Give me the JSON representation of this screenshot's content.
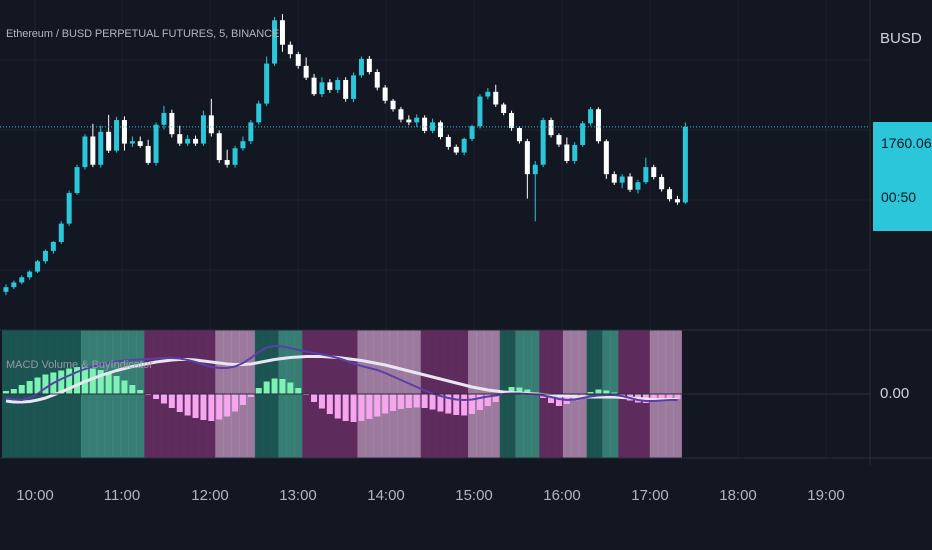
{
  "symbol_title": "Ethereum / BUSD PERPETUAL FUTURES, 5, BINANCE",
  "currency": "BUSD",
  "last_price": "1760.06",
  "countdown": "00:50",
  "indicator_title": "MACD Volume & BuyIndicator",
  "zero_label": "0.00",
  "colors": {
    "background": "#131722",
    "candle_up": "#2bc6d9",
    "candle_down": "#ffffff",
    "price_line": "#2bc6d9",
    "macd_line": "#5b3fa8",
    "signal_line": "#e8e6f0",
    "hist_pos": "#7ef2b4",
    "hist_neg": "#f6a6ee"
  },
  "chart_data": [
    {
      "type": "candlestick",
      "title": "Ethereum / BUSD PERPETUAL FUTURES, 5, BINANCE",
      "x_tick_labels": [
        "10:00",
        "11:00",
        "12:00",
        "13:00",
        "14:00",
        "15:00",
        "16:00",
        "17:00",
        "18:00",
        "19:00"
      ],
      "y_axis_unit": "BUSD",
      "last_price": 1760.06,
      "candles_ohlc": [
        [
          1725.0,
          1726.6,
          1724.3,
          1726.0
        ],
        [
          1726.0,
          1727.4,
          1725.6,
          1727.0
        ],
        [
          1727.0,
          1728.5,
          1726.6,
          1728.1
        ],
        [
          1728.1,
          1729.6,
          1727.6,
          1729.3
        ],
        [
          1729.3,
          1731.8,
          1729.0,
          1731.5
        ],
        [
          1731.5,
          1734.0,
          1731.0,
          1733.7
        ],
        [
          1733.7,
          1735.8,
          1733.1,
          1735.6
        ],
        [
          1735.6,
          1740.0,
          1735.2,
          1739.5
        ],
        [
          1739.5,
          1746.5,
          1739.0,
          1746.0
        ],
        [
          1746.0,
          1752.0,
          1745.6,
          1751.5
        ],
        [
          1751.5,
          1758.5,
          1751.0,
          1758.0
        ],
        [
          1758.0,
          1760.7,
          1751.5,
          1752.0
        ],
        [
          1752.0,
          1760.3,
          1751.4,
          1759.0
        ],
        [
          1759.0,
          1762.6,
          1754.5,
          1755.0
        ],
        [
          1755.0,
          1762.2,
          1754.6,
          1761.5
        ],
        [
          1761.5,
          1762.3,
          1755.0,
          1756.5
        ],
        [
          1756.5,
          1758.0,
          1755.8,
          1757.0
        ],
        [
          1757.0,
          1758.0,
          1755.6,
          1756.0
        ],
        [
          1756.0,
          1757.3,
          1752.0,
          1752.4
        ],
        [
          1752.4,
          1761.0,
          1751.8,
          1760.5
        ],
        [
          1760.5,
          1764.5,
          1759.5,
          1763.0
        ],
        [
          1763.0,
          1763.7,
          1757.8,
          1758.5
        ],
        [
          1758.5,
          1760.3,
          1756.0,
          1756.5
        ],
        [
          1756.5,
          1758.3,
          1756.0,
          1757.5
        ],
        [
          1757.5,
          1758.2,
          1756.0,
          1756.5
        ],
        [
          1756.5,
          1763.5,
          1756.0,
          1762.5
        ],
        [
          1762.5,
          1766.0,
          1758.0,
          1758.7
        ],
        [
          1758.7,
          1759.3,
          1752.4,
          1753.0
        ],
        [
          1753.0,
          1755.2,
          1751.4,
          1752.0
        ],
        [
          1752.0,
          1756.0,
          1751.4,
          1755.5
        ],
        [
          1755.5,
          1758.0,
          1755.0,
          1757.0
        ],
        [
          1757.0,
          1761.5,
          1756.4,
          1761.0
        ],
        [
          1761.0,
          1765.6,
          1760.5,
          1765.0
        ],
        [
          1765.0,
          1775.0,
          1764.5,
          1773.5
        ],
        [
          1773.5,
          1783.4,
          1773.0,
          1782.7
        ],
        [
          1782.7,
          1784.0,
          1776.0,
          1777.5
        ],
        [
          1777.5,
          1778.2,
          1774.6,
          1775.5
        ],
        [
          1775.5,
          1776.0,
          1772.4,
          1773.0
        ],
        [
          1773.0,
          1774.8,
          1770.0,
          1770.5
        ],
        [
          1770.5,
          1771.3,
          1766.6,
          1767.0
        ],
        [
          1767.0,
          1770.6,
          1766.4,
          1769.5
        ],
        [
          1769.5,
          1770.2,
          1767.3,
          1767.9
        ],
        [
          1767.9,
          1770.6,
          1767.2,
          1770.0
        ],
        [
          1770.0,
          1770.6,
          1765.4,
          1766.0
        ],
        [
          1766.0,
          1771.6,
          1765.3,
          1771.0
        ],
        [
          1771.0,
          1775.0,
          1770.5,
          1774.5
        ],
        [
          1774.5,
          1775.1,
          1771.2,
          1771.7
        ],
        [
          1771.7,
          1772.3,
          1767.8,
          1768.4
        ],
        [
          1768.4,
          1768.9,
          1765.0,
          1765.6
        ],
        [
          1765.6,
          1766.0,
          1763.3,
          1763.8
        ],
        [
          1763.8,
          1764.3,
          1761.0,
          1761.6
        ],
        [
          1761.6,
          1762.5,
          1760.4,
          1761.0
        ],
        [
          1761.0,
          1762.7,
          1760.0,
          1762.0
        ],
        [
          1762.0,
          1762.5,
          1758.7,
          1759.2
        ],
        [
          1759.2,
          1761.8,
          1758.7,
          1761.0
        ],
        [
          1761.0,
          1761.4,
          1757.4,
          1757.9
        ],
        [
          1757.9,
          1758.4,
          1755.2,
          1755.8
        ],
        [
          1755.8,
          1756.3,
          1754.1,
          1754.6
        ],
        [
          1754.6,
          1757.8,
          1754.0,
          1757.5
        ],
        [
          1757.5,
          1760.5,
          1757.0,
          1760.2
        ],
        [
          1760.2,
          1767.0,
          1759.7,
          1766.5
        ],
        [
          1766.5,
          1768.3,
          1765.9,
          1767.5
        ],
        [
          1767.5,
          1769.0,
          1764.3,
          1764.8
        ],
        [
          1764.8,
          1765.2,
          1762.5,
          1763.0
        ],
        [
          1763.0,
          1763.5,
          1759.2,
          1759.8
        ],
        [
          1759.8,
          1760.2,
          1756.5,
          1757.0
        ],
        [
          1757.0,
          1757.5,
          1744.8,
          1750.0
        ],
        [
          1750.0,
          1752.8,
          1740.0,
          1752.0
        ],
        [
          1752.0,
          1762.0,
          1751.5,
          1761.5
        ],
        [
          1761.5,
          1762.0,
          1757.8,
          1758.3
        ],
        [
          1758.3,
          1758.7,
          1755.8,
          1756.3
        ],
        [
          1756.3,
          1757.8,
          1752.3,
          1752.8
        ],
        [
          1752.8,
          1756.8,
          1752.2,
          1756.2
        ],
        [
          1756.2,
          1761.3,
          1755.8,
          1760.8
        ],
        [
          1760.8,
          1764.3,
          1760.3,
          1763.8
        ],
        [
          1763.8,
          1764.2,
          1756.5,
          1757.0
        ],
        [
          1757.0,
          1757.4,
          1749.0,
          1750.0
        ],
        [
          1750.0,
          1750.6,
          1747.7,
          1748.2
        ],
        [
          1748.2,
          1750.0,
          1747.0,
          1749.5
        ],
        [
          1749.5,
          1750.2,
          1746.2,
          1746.7
        ],
        [
          1746.7,
          1748.8,
          1745.9,
          1748.3
        ],
        [
          1748.3,
          1753.5,
          1747.9,
          1751.5
        ],
        [
          1751.5,
          1752.0,
          1748.9,
          1749.4
        ],
        [
          1749.4,
          1750.0,
          1746.3,
          1746.8
        ],
        [
          1746.8,
          1747.3,
          1744.2,
          1744.7
        ],
        [
          1744.7,
          1745.4,
          1743.5,
          1744.0
        ],
        [
          1744.0,
          1761.0,
          1743.7,
          1760.06
        ]
      ]
    },
    {
      "type": "bar+line",
      "title": "MACD Volume & BuyIndicator",
      "zero_level": 0.0,
      "series": [
        {
          "values": [
            3.0,
            5.0,
            9.0,
            13.0,
            16.5,
            19.5,
            21.5,
            23.5,
            25.5,
            27.0,
            26.5,
            25.5,
            24.0,
            21.5,
            18.0,
            13.5,
            9.0,
            4.0,
            -1.0,
            -5.0,
            -9.5,
            -14.0,
            -18.0,
            -21.5,
            -24.0,
            -26.0,
            -27.0,
            -25.5,
            -22.5,
            -17.5,
            -11.0,
            -3.0,
            6.0,
            12.5,
            15.5,
            15.0,
            11.5,
            6.0,
            -1.0,
            -8.0,
            -14.5,
            -20.0,
            -24.5,
            -27.0,
            -28.0,
            -27.0,
            -25.0,
            -22.5,
            -19.5,
            -17.0,
            -15.0,
            -14.0,
            -13.5,
            -14.0,
            -15.5,
            -17.5,
            -19.5,
            -21.0,
            -21.5,
            -20.0,
            -16.0,
            -12.0,
            -8.0,
            3.0,
            7.0,
            6.5,
            4.5,
            1.5,
            -4.0,
            -9.0,
            -12.0,
            -10.0,
            -6.5,
            -3.0,
            2.0,
            4.5,
            3.5,
            1.5,
            -2.5,
            -6.5,
            -8.5,
            -9.0,
            -8.0,
            -7.0,
            -6.5,
            -5.0
          ]
        },
        {
          "values": [
            -4.0,
            -5.5,
            -6.0,
            -4.0,
            0.0,
            6.0,
            11.0,
            15.0,
            18.5,
            22.0,
            25.0,
            27.5,
            29.5,
            31.0,
            32.5,
            33.5,
            34.0,
            34.5,
            35.0,
            35.5,
            36.0,
            36.0,
            35.5,
            34.0,
            32.0,
            29.5,
            27.0,
            26.0,
            26.0,
            27.5,
            31.0,
            36.0,
            42.0,
            46.5,
            48.0,
            47.5,
            46.0,
            44.0,
            42.5,
            41.0,
            39.5,
            38.0,
            36.0,
            33.5,
            30.5,
            28.0,
            26.0,
            24.0,
            21.0,
            17.5,
            14.0,
            10.5,
            7.0,
            3.5,
            0.5,
            -2.0,
            -4.0,
            -5.5,
            -6.0,
            -5.5,
            -4.0,
            -2.5,
            -1.5,
            0.0,
            0.5,
            0.5,
            0.0,
            -0.5,
            -1.5,
            -3.0,
            -5.0,
            -6.0,
            -5.5,
            -4.0,
            -2.5,
            -1.5,
            -1.0,
            -1.0,
            -2.0,
            -4.0,
            -6.0,
            -7.0,
            -7.0,
            -6.5,
            -6.0,
            -6.0
          ]
        },
        {
          "values": [
            -7.0,
            -8.0,
            -8.0,
            -7.5,
            -6.0,
            -4.0,
            -1.0,
            2.0,
            5.5,
            9.0,
            12.5,
            15.5,
            18.5,
            21.0,
            23.5,
            25.5,
            27.5,
            29.0,
            30.5,
            32.0,
            33.0,
            34.0,
            34.5,
            34.5,
            34.0,
            33.0,
            32.0,
            31.0,
            30.0,
            29.5,
            29.5,
            30.0,
            31.5,
            33.0,
            34.5,
            35.5,
            36.5,
            37.0,
            37.5,
            37.5,
            37.5,
            37.0,
            36.5,
            35.5,
            34.5,
            33.5,
            32.0,
            30.5,
            29.0,
            27.0,
            25.0,
            23.0,
            21.0,
            19.0,
            17.0,
            15.0,
            13.0,
            11.0,
            9.0,
            7.0,
            5.5,
            4.0,
            3.0,
            2.0,
            1.5,
            1.0,
            0.5,
            0.0,
            -0.5,
            -1.0,
            -1.5,
            -2.0,
            -2.5,
            -3.0,
            -3.0,
            -3.0,
            -3.0,
            -3.0,
            -3.5,
            -4.0,
            -4.5,
            -5.0,
            -5.5,
            -5.5,
            -5.5,
            -5.5
          ]
        }
      ]
    }
  ]
}
